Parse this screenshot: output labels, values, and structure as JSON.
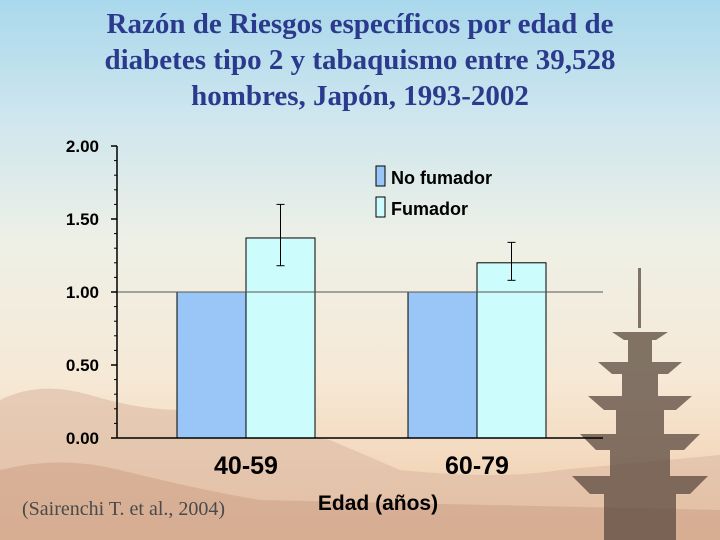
{
  "title_lines": [
    "Razón de Riesgos específicos por edad de",
    "diabetes tipo 2 y tabaquismo entre 39,528",
    "hombres, Japón, 1993-2002"
  ],
  "citation": "(Sairenchi T. et al., 2004)",
  "colors": {
    "no_fumador": "#99c6f7",
    "fumador": "#ccfcfc",
    "title": "#2b3a8c"
  },
  "chart_data": {
    "type": "bar",
    "categories": [
      "40-59",
      "60-79"
    ],
    "series": [
      {
        "name": "No fumador",
        "values": [
          1.0,
          1.0
        ]
      },
      {
        "name": "Fumador",
        "values": [
          1.37,
          1.2
        ],
        "error_low": [
          1.18,
          1.08
        ],
        "error_high": [
          1.6,
          1.34
        ]
      }
    ],
    "xlabel": "Edad (años)",
    "ylabel": "",
    "ylim": [
      0,
      2
    ],
    "yticks": [
      "0.00",
      "0.50",
      "1.00",
      "1.50",
      "2.00"
    ],
    "reference_line": 1.0,
    "legend_position": "top-right",
    "grid": false
  }
}
